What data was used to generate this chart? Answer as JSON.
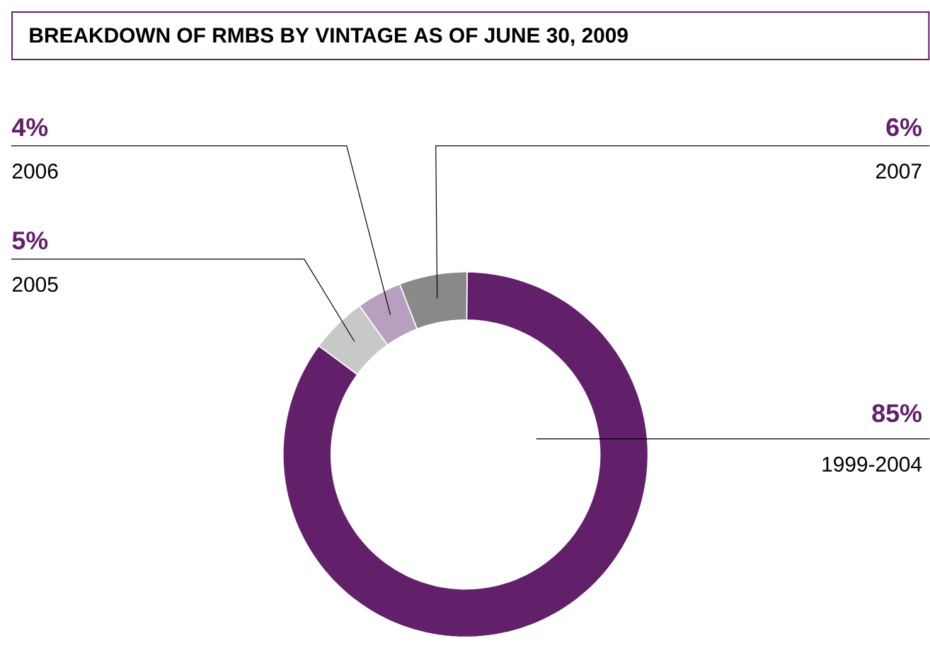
{
  "chart_data": {
    "type": "donut",
    "title": "BREAKDOWN OF RMBS BY VINTAGE AS OF JUNE 30, 2009",
    "categories": [
      "1999-2004",
      "2005",
      "2006",
      "2007"
    ],
    "values": [
      85,
      5,
      4,
      6
    ],
    "value_labels": [
      "85%",
      "5%",
      "4%",
      "6%"
    ],
    "colors": [
      "#63206a",
      "#c8c8c8",
      "#b89fbf",
      "#898989"
    ]
  }
}
